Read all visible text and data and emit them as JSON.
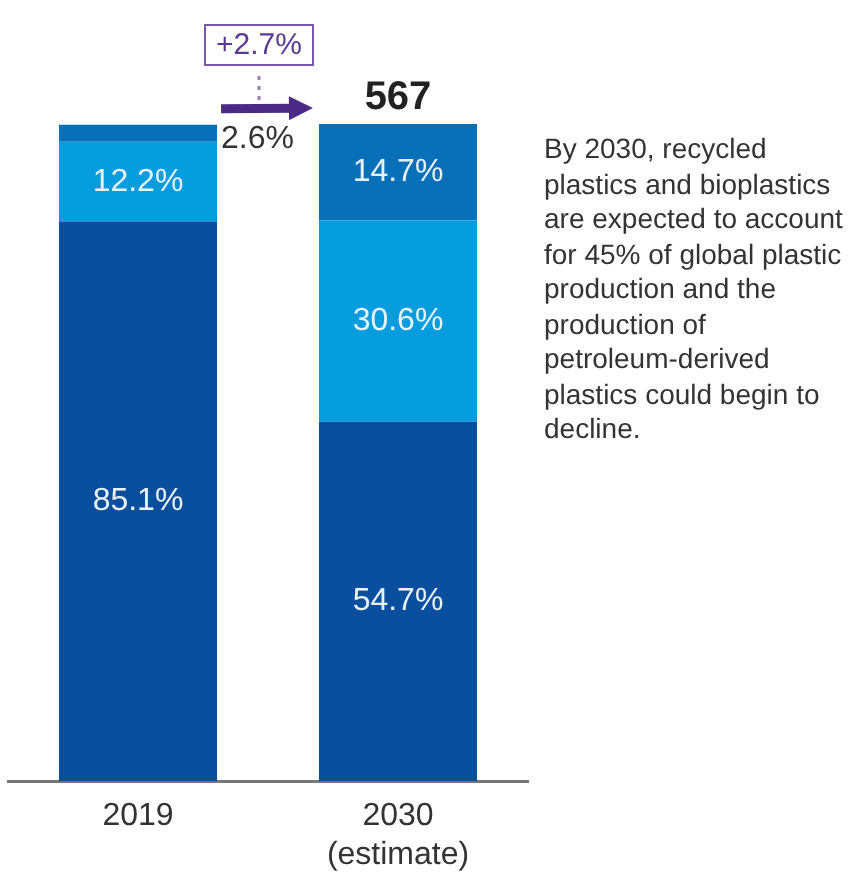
{
  "chart_data": {
    "type": "bar",
    "stacked": true,
    "categories": [
      "2019",
      "2030\n(estimate)"
    ],
    "series": [
      {
        "color": "#0a4f9e",
        "values": [
          85.1,
          54.7
        ],
        "value_labels": [
          "85.1%",
          "54.7%"
        ]
      },
      {
        "color": "#069ddf",
        "values": [
          12.2,
          30.6
        ],
        "value_labels": [
          "12.2%",
          "30.6%"
        ]
      },
      {
        "color": "#0870b9",
        "values": [
          2.6,
          14.7
        ],
        "value_labels": [
          "2.6%",
          "14.7%"
        ]
      }
    ],
    "annotations": [
      "+2.7%",
      {
        "text": "567",
        "x": "2030\n(estimate)",
        "y": 100
      },
      "By 2030, recycled plastics and bioplastics are expected to account for 45% of global plastic production and the production of petroleum-derived plastics could begin to decline."
    ],
    "legend": false,
    "grid": false
  }
}
